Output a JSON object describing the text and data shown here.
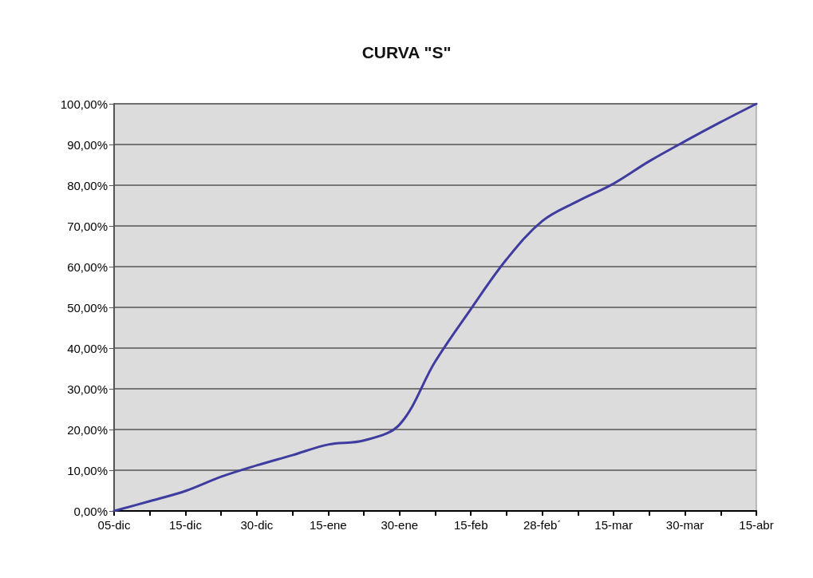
{
  "chart_data": {
    "type": "line",
    "title": "CURVA \"S\"",
    "categories": [
      "05-dic",
      null,
      "15-dic",
      null,
      "30-dic",
      null,
      "15-ene",
      null,
      "30-ene",
      null,
      "15-feb",
      null,
      "28-feb´",
      null,
      "15-mar",
      null,
      "30-mar",
      null,
      "15-abr"
    ],
    "series": [
      {
        "color": "#3f3ca0",
        "values": [
          0,
          2.4,
          4.9,
          8.4,
          11.2,
          13.7,
          16.3,
          17.3,
          21.2,
          36.7,
          49.6,
          61.8,
          71.2,
          76.1,
          80.4,
          85.9,
          90.8,
          95.5,
          100
        ]
      }
    ],
    "ylim": [
      0,
      100
    ],
    "yticks": [
      {
        "value": 0,
        "label": "0,00%"
      },
      {
        "value": 10,
        "label": "10,00%"
      },
      {
        "value": 20,
        "label": "20,00%"
      },
      {
        "value": 30,
        "label": "30,00%"
      },
      {
        "value": 40,
        "label": "40,00%"
      },
      {
        "value": 50,
        "label": "50,00%"
      },
      {
        "value": 60,
        "label": "60,00%"
      },
      {
        "value": 70,
        "label": "70,00%"
      },
      {
        "value": 80,
        "label": "80,00%"
      },
      {
        "value": 90,
        "label": "90,00%"
      },
      {
        "value": 100,
        "label": "100,00%"
      }
    ],
    "grid": "y",
    "marker": "none",
    "line_style": "solid"
  }
}
